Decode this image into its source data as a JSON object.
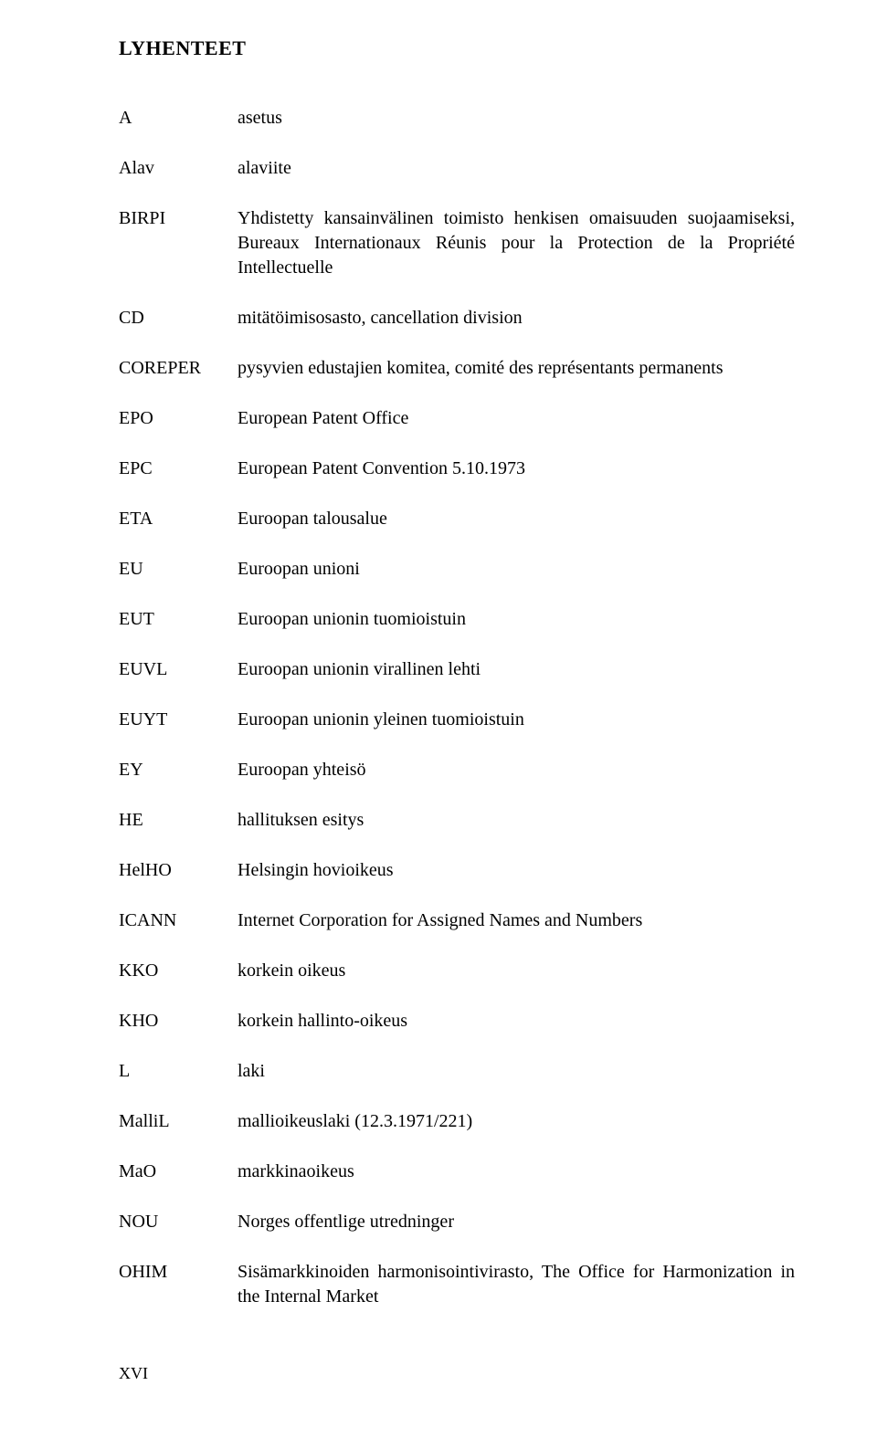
{
  "title": "LYHENTEET",
  "entries": [
    {
      "abbr": "A",
      "def": "asetus"
    },
    {
      "abbr": "Alav",
      "def": "alaviite"
    },
    {
      "abbr": "BIRPI",
      "def": "Yhdistetty kansainvälinen toimisto henkisen omaisuuden suojaamiseksi, Bureaux Internationaux Réunis pour la Protection de la Propriété Intellectuelle"
    },
    {
      "abbr": "CD",
      "def": "mitätöimisosasto, cancellation division"
    },
    {
      "abbr": "COREPER",
      "def": "pysyvien edustajien komitea, comité des représentants permanents"
    },
    {
      "abbr": "EPO",
      "def": "European Patent Office"
    },
    {
      "abbr": "EPC",
      "def": "European Patent Convention 5.10.1973"
    },
    {
      "abbr": "ETA",
      "def": "Euroopan talousalue"
    },
    {
      "abbr": "EU",
      "def": "Euroopan unioni"
    },
    {
      "abbr": "EUT",
      "def": "Euroopan unionin tuomioistuin"
    },
    {
      "abbr": "EUVL",
      "def": "Euroopan unionin virallinen lehti"
    },
    {
      "abbr": "EUYT",
      "def": "Euroopan unionin yleinen tuomioistuin"
    },
    {
      "abbr": "EY",
      "def": "Euroopan yhteisö"
    },
    {
      "abbr": "HE",
      "def": "hallituksen esitys"
    },
    {
      "abbr": "HelHO",
      "def": "Helsingin hovioikeus"
    },
    {
      "abbr": "ICANN",
      "def": "Internet Corporation for Assigned Names and Numbers"
    },
    {
      "abbr": "KKO",
      "def": "korkein oikeus"
    },
    {
      "abbr": "KHO",
      "def": "korkein hallinto-oikeus"
    },
    {
      "abbr": "L",
      "def": "laki"
    },
    {
      "abbr": "MalliL",
      "def": "mallioikeuslaki (12.3.1971/221)"
    },
    {
      "abbr": "MaO",
      "def": "markkinaoikeus"
    },
    {
      "abbr": "NOU",
      "def": "Norges offentlige utredninger"
    },
    {
      "abbr": "OHIM",
      "def": "Sisämarkkinoiden harmonisointivirasto, The Office for Harmonization in the Internal Market"
    }
  ],
  "footer": "XVI"
}
